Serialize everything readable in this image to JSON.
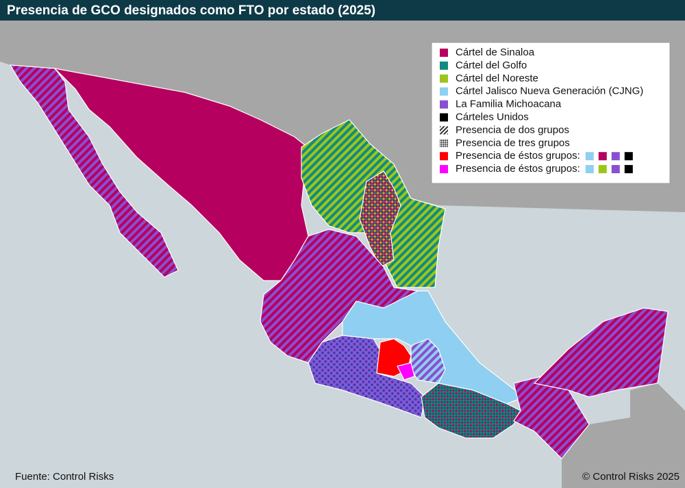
{
  "header": {
    "title": "Presencia de GCO designados como FTO por estado (2025)"
  },
  "legend": {
    "items": [
      {
        "label": "Cártel de Sinaloa",
        "fill": "#b5005f"
      },
      {
        "label": "Cártel del Golfo",
        "fill": "#128a80"
      },
      {
        "label": "Cártel del Noreste",
        "fill": "#9cc51c"
      },
      {
        "label": "Cártel Jalisco Nueva Generación (CJNG)",
        "fill": "#8fcff2"
      },
      {
        "label": "La Familia Michoacana",
        "fill": "#8a4fd0"
      },
      {
        "label": "Cárteles Unidos",
        "fill": "#000000"
      },
      {
        "label": "Presencia de dos grupos",
        "pattern": "stripes"
      },
      {
        "label": "Presencia de tres grupos",
        "pattern": "checks"
      },
      {
        "label": "Presencia de éstos grupos:",
        "fill": "#ff0000",
        "groups": [
          "#8fcff2",
          "#b5005f",
          "#8a4fd0",
          "#000000"
        ]
      },
      {
        "label": "Presencia de éstos grupos:",
        "fill": "#ff00ff",
        "groups": [
          "#8fcff2",
          "#9cc51c",
          "#8a4fd0",
          "#000000"
        ]
      }
    ]
  },
  "footer": {
    "source": "Fuente: Control Risks",
    "copyright": "© Control Risks 2025"
  }
}
